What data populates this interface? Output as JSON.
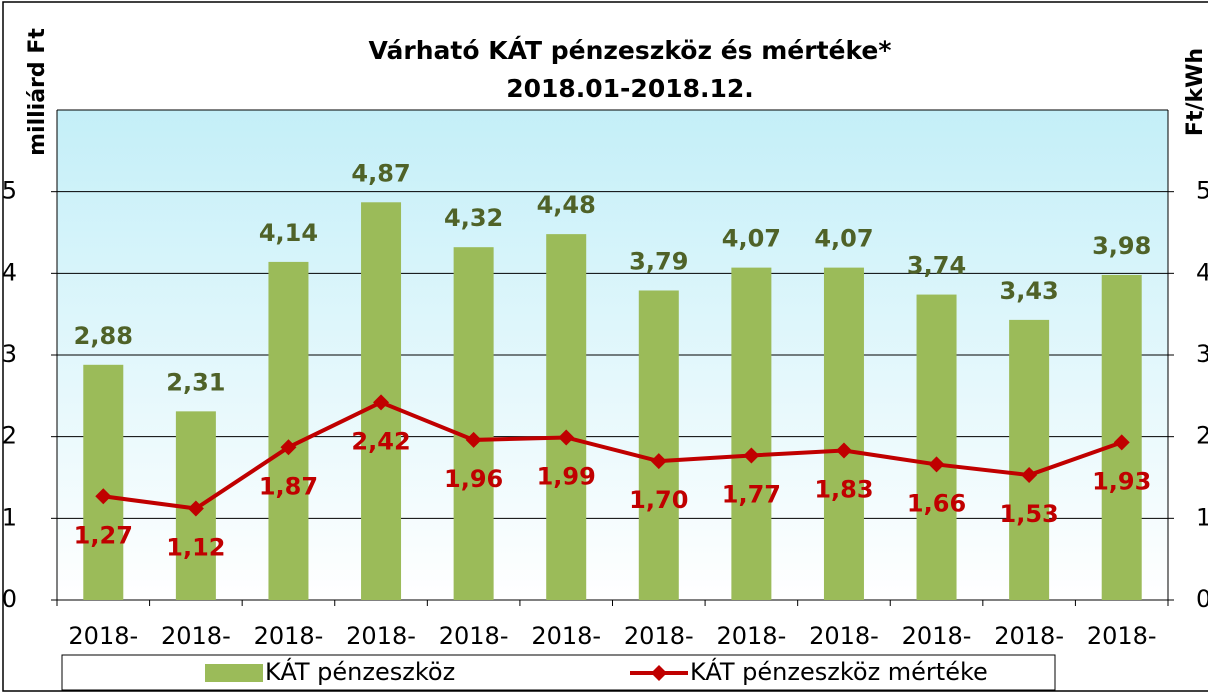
{
  "chart_data": {
    "type": "bar-line",
    "title": "Várható KÁT pénzeszköz és mértéke*",
    "subtitle": "2018.01-2018.12.",
    "y_label": "milliárd Ft",
    "y2_label": "Ft/kWh",
    "categories": [
      "2018-",
      "2018-",
      "2018-",
      "2018-",
      "2018-",
      "2018-",
      "2018-",
      "2018-",
      "2018-",
      "2018-",
      "2018-",
      "2018-"
    ],
    "series": [
      {
        "name": "KÁT pénzeszköz",
        "type": "bar",
        "color": "#9bbb59",
        "label_color": "#4f6228",
        "values": [
          2.88,
          2.31,
          4.14,
          4.87,
          4.32,
          4.48,
          3.79,
          4.07,
          4.07,
          3.74,
          3.43,
          3.98
        ],
        "value_labels": [
          "2,88",
          "2,31",
          "4,14",
          "4,87",
          "4,32",
          "4,48",
          "3,79",
          "4,07",
          "4,07",
          "3,74",
          "3,43",
          "3,98"
        ]
      },
      {
        "name": "KÁT pénzeszköz mértéke",
        "type": "line",
        "axis": "y2",
        "color": "#c00000",
        "label_color": "#c00000",
        "values": [
          1.27,
          1.12,
          1.87,
          2.42,
          1.96,
          1.99,
          1.7,
          1.77,
          1.83,
          1.66,
          1.53,
          1.93
        ],
        "value_labels": [
          "1,27",
          "1,12",
          "1,87",
          "2,42",
          "1,96",
          "1,99",
          "1,70",
          "1,77",
          "1,83",
          "1,66",
          "1,53",
          "1,93"
        ]
      }
    ],
    "ylim": [
      0,
      6
    ],
    "yticks": [
      0,
      1,
      2,
      3,
      4,
      5
    ],
    "y2lim": [
      0,
      6
    ],
    "y2ticks": [
      0,
      1,
      2,
      3,
      4,
      5
    ],
    "grid": true
  }
}
